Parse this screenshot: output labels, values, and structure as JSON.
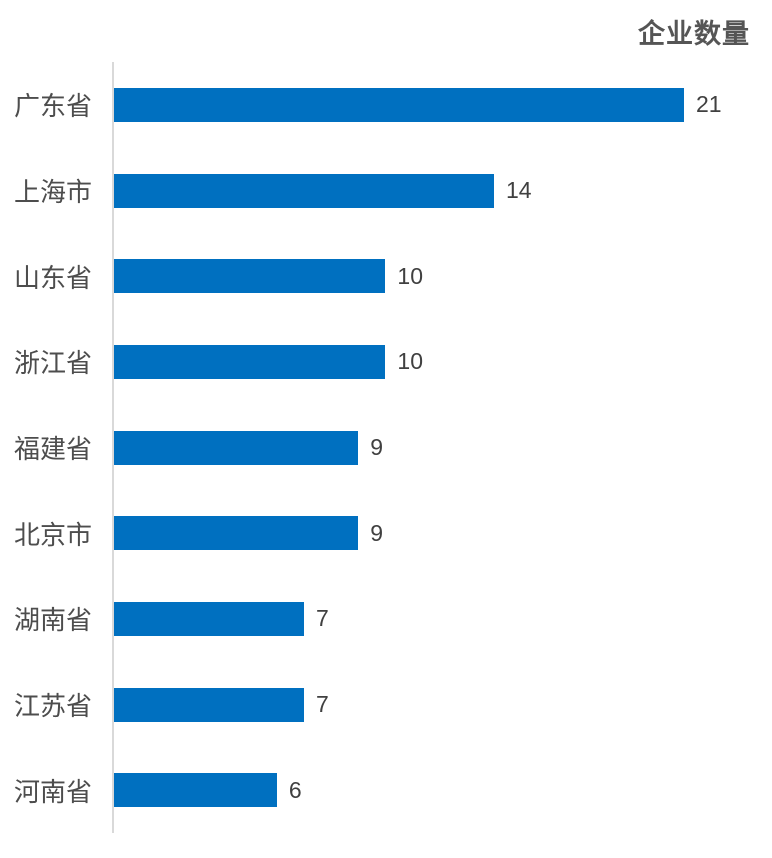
{
  "colors": {
    "bar": "#0070C0",
    "axis_line": "#D9D9D9",
    "title_text": "#555555",
    "category_text": "#4D4D4D",
    "value_text": "#404040",
    "background": "#FFFFFF"
  },
  "chart_data": {
    "type": "bar",
    "orientation": "horizontal",
    "title": "企业数量",
    "categories": [
      "广东省",
      "上海市",
      "山东省",
      "浙江省",
      "福建省",
      "北京市",
      "湖南省",
      "江苏省",
      "河南省"
    ],
    "values": [
      21,
      14,
      10,
      10,
      9,
      9,
      7,
      7,
      6
    ],
    "xlim": [
      0,
      21
    ],
    "value_labels_shown": true,
    "grid": false,
    "legend": false,
    "sort_order": "descending"
  }
}
